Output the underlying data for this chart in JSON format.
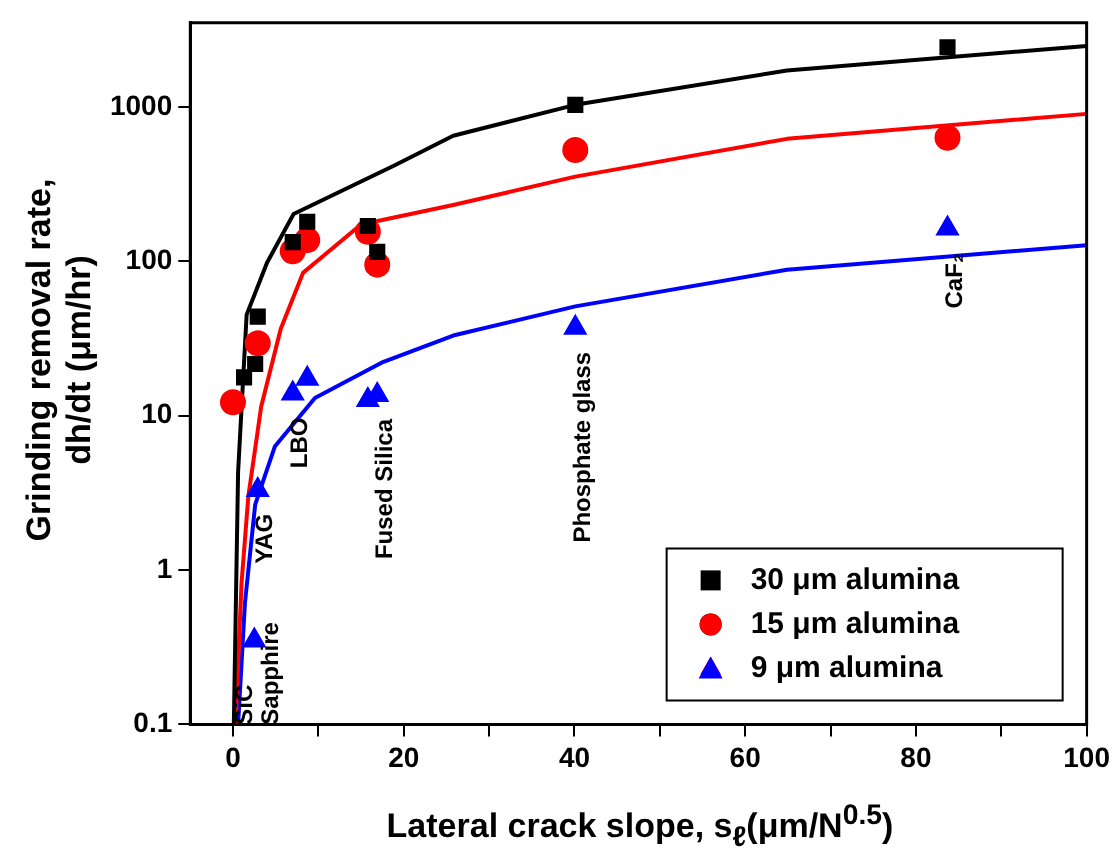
{
  "chart_data": {
    "type": "scatter",
    "xlabel": "Lateral crack slope, s$_{ℓ}$(μm/N$^{0.5}$)",
    "ylabel": "Grinding removal rate,\ndh/dt (μm/hr)",
    "xlim": [
      -5,
      100
    ],
    "xticks": [
      0,
      {
        "value": 10,
        "label": null
      },
      20,
      {
        "value": 30,
        "label": null
      },
      40,
      {
        "value": 50,
        "label": null
      },
      60,
      {
        "value": 70,
        "label": null
      },
      80,
      {
        "value": 90,
        "label": null
      },
      100
    ],
    "ylim": [
      0.1,
      3500
    ],
    "yticks": [
      0.1,
      1,
      10,
      100,
      1000
    ],
    "log": "y",
    "grid": false,
    "legend": "bottom right",
    "series": [
      {
        "name": "30 μm alumina",
        "color": "#000000",
        "marker": "square",
        "x": [
          1.3,
          2.6,
          2.9,
          7.0,
          8.7,
          15.8,
          16.9,
          40.1,
          83.7
        ],
        "values": [
          17.7,
          21.6,
          43.8,
          133,
          180,
          169,
          115,
          1030,
          2430
        ]
      },
      {
        "name": "15 μm alumina",
        "color": "#ff0000",
        "marker": "circle",
        "x": [
          0,
          2.9,
          7.0,
          8.7,
          15.8,
          16.9,
          40.1,
          83.7
        ],
        "values": [
          12.2,
          29.4,
          116,
          137,
          155,
          95,
          525,
          630
        ]
      },
      {
        "name": "9 μm alumina",
        "color": "#0000ff",
        "marker": "triangle",
        "x": [
          2.5,
          2.9,
          7.0,
          8.7,
          15.8,
          16.9,
          40.1,
          83.7
        ],
        "values": [
          0.35,
          3.3,
          13.9,
          17.3,
          12.6,
          13.6,
          37,
          163
        ]
      },
      {
        "type": "line",
        "color": "#000000",
        "marker": "none",
        "x": [
          0.1,
          0.6,
          1.6,
          4,
          7.1,
          18.9,
          25.8,
          40.1,
          64.9,
          100
        ],
        "values": [
          0.1,
          4.3,
          45,
          98,
          202,
          417,
          650,
          1030,
          1720,
          2480
        ]
      },
      {
        "type": "line",
        "color": "#ff0000",
        "marker": "none",
        "x": [
          0.3,
          1,
          1.8,
          3.3,
          5.6,
          8.2,
          15,
          25.8,
          40.1,
          64.9,
          100
        ],
        "values": [
          0.1,
          0.82,
          3,
          11.4,
          36.5,
          84,
          173,
          231,
          353,
          620,
          900
        ]
      },
      {
        "type": "line",
        "color": "#0000ff",
        "marker": "none",
        "x": [
          0.6,
          1.4,
          2.6,
          4.9,
          9.6,
          17.4,
          25.8,
          40.1,
          64.9,
          100
        ],
        "values": [
          0.1,
          0.61,
          2.65,
          6.3,
          13,
          22,
          33,
          51,
          88,
          127
        ]
      }
    ],
    "annotations": [
      "SiC",
      "Sapphire",
      {
        "text": "YAG",
        "x": 2.9,
        "y": 3.3
      },
      {
        "text": "LBO",
        "x": 7.0,
        "y": 13.9
      },
      {
        "text": "Fused Silica",
        "x": 16.9,
        "y": 13.6
      },
      {
        "text": "Phosphate glass",
        "x": 40.1,
        "y": 37
      },
      {
        "text": "CaF₂",
        "x": 83.7,
        "y": 163
      }
    ]
  }
}
